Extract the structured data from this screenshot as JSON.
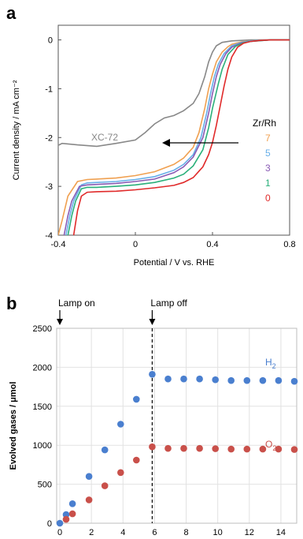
{
  "chart_data": [
    {
      "panel": "a",
      "type": "line",
      "xlabel": "Potential / V vs. RHE",
      "ylabel": "Current density / mA cm⁻²",
      "xlim": [
        -0.4,
        0.8
      ],
      "ylim": [
        -4,
        0.3
      ],
      "xticks": [
        "-0.4",
        "0",
        "0.4",
        "0.8"
      ],
      "yticks": [
        "0",
        "-1",
        "-2",
        "-3",
        "-4"
      ],
      "legend_title": "Zr/Rh",
      "series": [
        {
          "name": "XC-72",
          "color": "#888888",
          "x": [
            -0.42,
            -0.38,
            -0.3,
            -0.2,
            -0.1,
            0.0,
            0.05,
            0.1,
            0.15,
            0.2,
            0.25,
            0.3,
            0.33,
            0.36,
            0.38,
            0.4,
            0.42,
            0.45,
            0.5,
            0.55,
            0.6,
            0.7,
            0.8
          ],
          "y": [
            -2.2,
            -2.12,
            -2.15,
            -2.18,
            -2.12,
            -2.05,
            -1.9,
            -1.72,
            -1.6,
            -1.55,
            -1.45,
            -1.3,
            -1.1,
            -0.75,
            -0.45,
            -0.25,
            -0.12,
            -0.05,
            -0.02,
            -0.01,
            0.0,
            0.0,
            0.0
          ]
        },
        {
          "name": "7",
          "color": "#f0a050",
          "x": [
            -0.4,
            -0.38,
            -0.35,
            -0.3,
            -0.25,
            -0.2,
            -0.1,
            0.0,
            0.1,
            0.2,
            0.25,
            0.3,
            0.33,
            0.36,
            0.38,
            0.4,
            0.42,
            0.45,
            0.48,
            0.5,
            0.55,
            0.6,
            0.7,
            0.8
          ],
          "y": [
            -4.0,
            -3.7,
            -3.2,
            -2.9,
            -2.86,
            -2.85,
            -2.83,
            -2.78,
            -2.7,
            -2.55,
            -2.42,
            -2.2,
            -1.9,
            -1.4,
            -1.0,
            -0.7,
            -0.45,
            -0.25,
            -0.14,
            -0.09,
            -0.04,
            -0.02,
            0.0,
            0.0
          ]
        },
        {
          "name": "5",
          "color": "#66aee8",
          "x": [
            -0.36,
            -0.34,
            -0.32,
            -0.28,
            -0.25,
            -0.2,
            -0.1,
            0.0,
            0.1,
            0.2,
            0.25,
            0.3,
            0.34,
            0.37,
            0.39,
            0.41,
            0.43,
            0.46,
            0.5,
            0.55,
            0.6,
            0.7,
            0.8
          ],
          "y": [
            -4.0,
            -3.6,
            -3.3,
            -2.97,
            -2.93,
            -2.92,
            -2.9,
            -2.86,
            -2.8,
            -2.67,
            -2.55,
            -2.35,
            -2.0,
            -1.5,
            -1.1,
            -0.75,
            -0.5,
            -0.28,
            -0.12,
            -0.05,
            -0.02,
            0.0,
            0.0
          ]
        },
        {
          "name": "3",
          "color": "#8a5bb5",
          "x": [
            -0.37,
            -0.35,
            -0.33,
            -0.29,
            -0.25,
            -0.2,
            -0.1,
            0.0,
            0.1,
            0.2,
            0.25,
            0.3,
            0.35,
            0.38,
            0.4,
            0.42,
            0.44,
            0.47,
            0.5,
            0.55,
            0.6,
            0.7,
            0.8
          ],
          "y": [
            -4.0,
            -3.6,
            -3.3,
            -3.0,
            -2.97,
            -2.96,
            -2.94,
            -2.9,
            -2.85,
            -2.72,
            -2.6,
            -2.4,
            -2.0,
            -1.5,
            -1.1,
            -0.75,
            -0.5,
            -0.28,
            -0.15,
            -0.06,
            -0.03,
            0.0,
            0.0
          ]
        },
        {
          "name": "1",
          "color": "#2ab07a",
          "x": [
            -0.35,
            -0.33,
            -0.31,
            -0.28,
            -0.25,
            -0.2,
            -0.1,
            0.0,
            0.1,
            0.2,
            0.25,
            0.3,
            0.35,
            0.38,
            0.4,
            0.43,
            0.45,
            0.48,
            0.52,
            0.56,
            0.6,
            0.7,
            0.8
          ],
          "y": [
            -4.0,
            -3.6,
            -3.3,
            -3.05,
            -3.02,
            -3.02,
            -3.0,
            -2.97,
            -2.92,
            -2.83,
            -2.75,
            -2.58,
            -2.25,
            -1.8,
            -1.4,
            -0.9,
            -0.6,
            -0.3,
            -0.13,
            -0.06,
            -0.03,
            0.0,
            0.0
          ]
        },
        {
          "name": "0",
          "color": "#e02a2a",
          "x": [
            -0.32,
            -0.3,
            -0.28,
            -0.25,
            -0.2,
            -0.1,
            0.0,
            0.1,
            0.2,
            0.25,
            0.3,
            0.35,
            0.38,
            0.4,
            0.42,
            0.44,
            0.46,
            0.48,
            0.5,
            0.53,
            0.56,
            0.6,
            0.65,
            0.7,
            0.8
          ],
          "y": [
            -4.0,
            -3.5,
            -3.2,
            -3.12,
            -3.11,
            -3.1,
            -3.07,
            -3.03,
            -2.98,
            -2.92,
            -2.82,
            -2.6,
            -2.35,
            -2.1,
            -1.75,
            -1.35,
            -0.95,
            -0.6,
            -0.35,
            -0.15,
            -0.07,
            -0.03,
            -0.01,
            0.0,
            0.0
          ]
        }
      ],
      "annotations": {
        "arrow_text": ""
      }
    },
    {
      "panel": "b",
      "type": "scatter",
      "xlabel": "Time / h",
      "ylabel": "Evolved gases / μmol",
      "xlim": [
        -0.2,
        15
      ],
      "ylim": [
        0,
        2500
      ],
      "xticks": [
        "0",
        "2",
        "4",
        "6",
        "8",
        "10",
        "12",
        "14"
      ],
      "yticks": [
        "0",
        "500",
        "1000",
        "1500",
        "2000",
        "2500"
      ],
      "dashed_line_x": 5.85,
      "series": [
        {
          "name": "H2",
          "color": "#4a7fcf",
          "x": [
            0,
            0.4,
            0.8,
            1.85,
            2.85,
            3.85,
            4.85,
            5.85,
            6.85,
            7.85,
            8.85,
            9.85,
            10.85,
            11.85,
            12.85,
            13.85,
            14.85
          ],
          "y": [
            0,
            110,
            250,
            600,
            940,
            1270,
            1590,
            1910,
            1850,
            1850,
            1850,
            1840,
            1830,
            1830,
            1830,
            1830,
            1820
          ]
        },
        {
          "name": "O2",
          "color": "#c9504a",
          "x": [
            0.4,
            0.8,
            1.85,
            2.85,
            3.85,
            4.85,
            5.85,
            6.85,
            7.85,
            8.85,
            9.85,
            10.85,
            11.85,
            12.85,
            13.85,
            14.85
          ],
          "y": [
            50,
            120,
            300,
            480,
            650,
            810,
            980,
            960,
            960,
            960,
            955,
            950,
            950,
            950,
            950,
            945
          ]
        }
      ],
      "labels": {
        "lamp_on": "Lamp on",
        "lamp_off": "Lamp off",
        "h2_main": "H",
        "h2_sub": "2",
        "o2_main": "O",
        "o2_sub": "2"
      }
    }
  ]
}
